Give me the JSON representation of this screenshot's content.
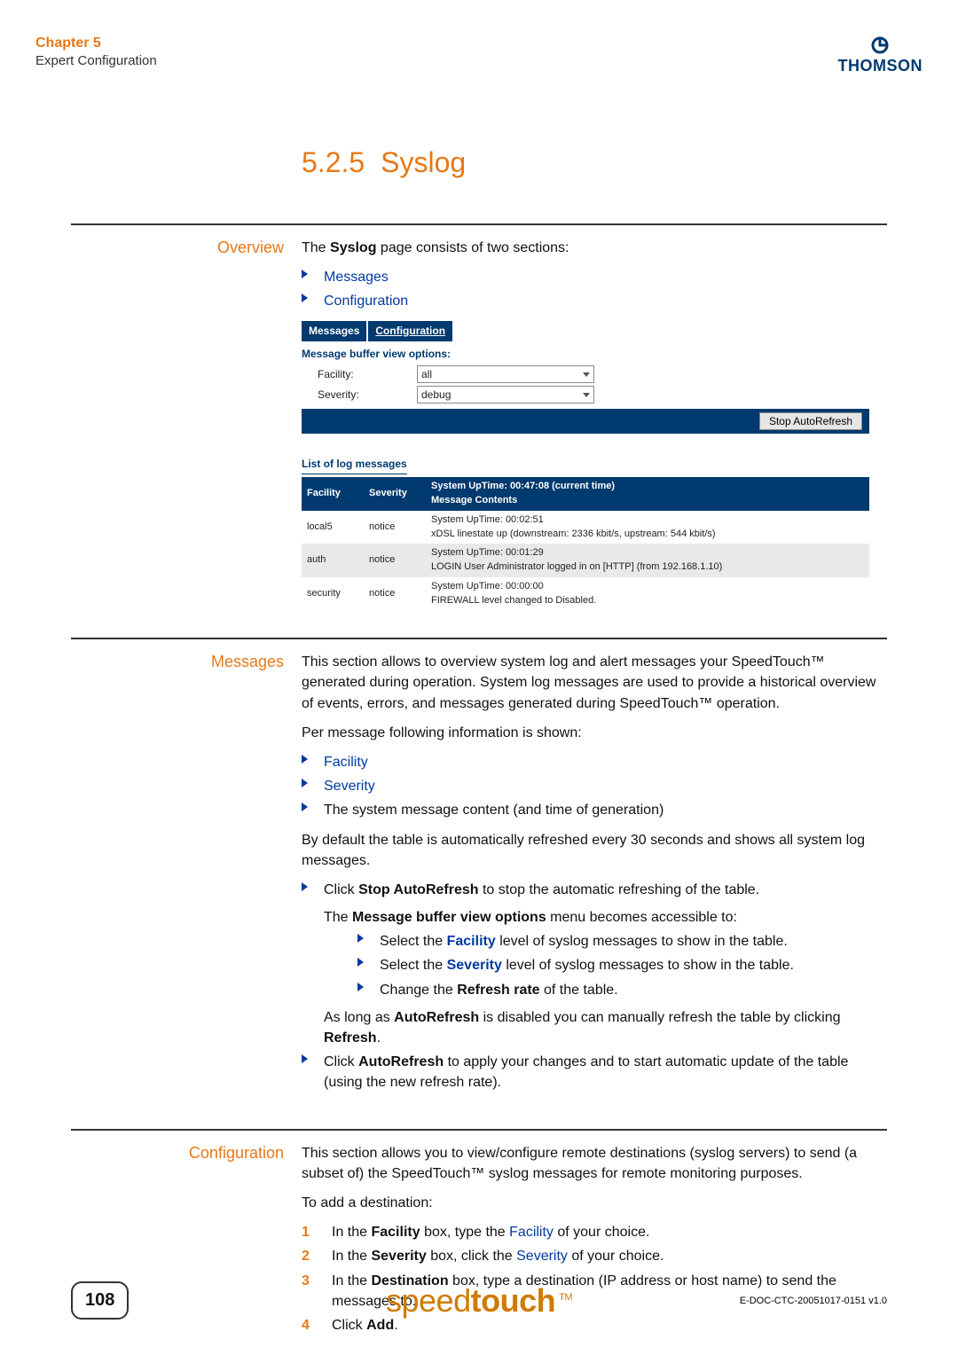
{
  "header": {
    "chapter": "Chapter 5",
    "subtitle": "Expert Configuration",
    "brand": "THOMSON"
  },
  "section": {
    "number": "5.2.5",
    "title": "Syslog"
  },
  "overview": {
    "label": "Overview",
    "intro_pre": "The ",
    "intro_bold": "Syslog",
    "intro_post": " page consists of two sections:",
    "links": [
      "Messages",
      "Configuration"
    ]
  },
  "ui": {
    "tabs": [
      "Messages",
      "Configuration"
    ],
    "active_tab": 0,
    "opts_title": "Message buffer view options:",
    "facility_label": "Facility:",
    "facility_value": "all",
    "severity_label": "Severity:",
    "severity_value": "debug",
    "stop_btn": "Stop AutoRefresh",
    "list_title": "List of log messages",
    "system_uptime_header": "System UpTime: 00:47:08 (current time)",
    "columns": [
      "Facility",
      "Severity",
      "Message Contents"
    ],
    "rows": [
      {
        "facility": "local5",
        "severity": "notice",
        "uptime": "System UpTime: 00:02:51",
        "msg": "xDSL linestate up (downstream: 2336 kbit/s, upstream: 544 kbit/s)",
        "alt": false
      },
      {
        "facility": "auth",
        "severity": "notice",
        "uptime": "System UpTime: 00:01:29",
        "msg": "LOGIN User Administrator logged in on [HTTP] (from 192.168.1.10)",
        "alt": true
      },
      {
        "facility": "security",
        "severity": "notice",
        "uptime": "System UpTime: 00:00:00",
        "msg": "FIREWALL level changed to Disabled.",
        "alt": false
      }
    ],
    "colors": {
      "header_bg": "#003a6f",
      "alt_row": "#e9e9e9",
      "btn_bg": "#e6e6e6"
    }
  },
  "messages": {
    "label": "Messages",
    "p1": "This section allows to overview system log and alert messages your SpeedTouch™ generated during operation. System log messages are used to provide a historical overview of events, errors, and messages generated during SpeedTouch™ operation.",
    "p2": "Per message following information is shown:",
    "info_links": [
      "Facility",
      "Severity"
    ],
    "info_plain": "The system message content (and time of generation)",
    "p3": "By default the table is automatically refreshed every 30 seconds and shows all system log messages.",
    "b1_pre": "Click ",
    "b1_bold": "Stop AutoRefresh",
    "b1_post": " to stop the automatic refreshing of the table.",
    "b1a_pre": "The ",
    "b1a_bold": "Message buffer view options",
    "b1a_post": " menu becomes accessible to:",
    "s1_pre": "Select the ",
    "s1_link": "Facility",
    "s1_post": " level of syslog messages to show in the table.",
    "s2_pre": "Select the ",
    "s2_link": "Severity",
    "s2_post": " level of syslog messages to show in the table.",
    "s3_pre": "Change the ",
    "s3_bold": "Refresh rate",
    "s3_post": " of the table.",
    "b1b_pre": "As long as ",
    "b1b_bold": "AutoRefresh",
    "b1b_mid": " is disabled you can manually refresh the table by clicking ",
    "b1b_bold2": "Refresh",
    "b1b_post": ".",
    "b2_pre": "Click ",
    "b2_bold": "AutoRefresh",
    "b2_post": " to apply your changes and to start automatic update of the table (using the new refresh rate)."
  },
  "configuration": {
    "label": "Configuration",
    "p1": "This section allows you to view/configure remote destinations (syslog servers) to send (a subset of) the SpeedTouch™ syslog messages for remote monitoring purposes.",
    "p2": "To add a destination:",
    "steps": [
      {
        "n": "1",
        "pre": "In the ",
        "bold": "Facility",
        "mid": " box, type the ",
        "link": "Facility",
        "post": " of your choice."
      },
      {
        "n": "2",
        "pre": "In the ",
        "bold": "Severity",
        "mid": " box, click the ",
        "link": "Severity",
        "post": " of your choice."
      },
      {
        "n": "3",
        "pre": "In the ",
        "bold": "Destination",
        "mid": " box, type a destination (IP address or host name) to send the messages to.",
        "link": "",
        "post": ""
      },
      {
        "n": "4",
        "pre": "Click ",
        "bold": "Add",
        "mid": ".",
        "link": "",
        "post": ""
      }
    ]
  },
  "footer": {
    "page": "108",
    "logo_plain": "speed",
    "logo_bold": "touch",
    "tm": "TM",
    "doc_id": "E-DOC-CTC-20051017-0151 v1.0"
  }
}
